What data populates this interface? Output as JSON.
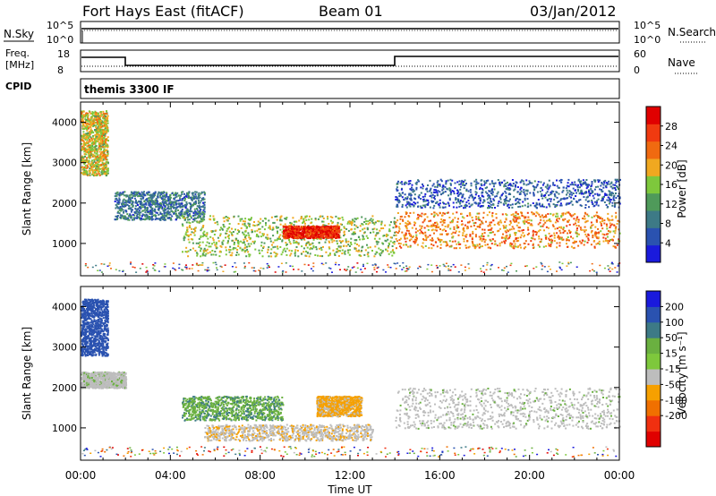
{
  "header": {
    "radar_title": "Fort Hays East (fitACF)",
    "beam": "Beam 01",
    "date": "03/Jan/2012"
  },
  "aux_panels": {
    "nsky_label": "N.Sky",
    "nsearch_label": "N.Search",
    "nsky_scale_top": "10^5",
    "nsky_scale_bottom": "10^0",
    "freq_label_line1": "Freq.",
    "freq_label_line2": "[MHz]",
    "freq_scale_top": "18",
    "freq_scale_bottom": "8",
    "nave_label": "Nave",
    "nave_scale_top": "60",
    "nave_scale_bottom": "0",
    "cpid_label": "CPID",
    "cpid_value": "themis 3300 IF"
  },
  "colors": {
    "power": [
      "#1a1adc",
      "#2a52b0",
      "#3d7a86",
      "#4f9a5a",
      "#7ec83c",
      "#f0a820",
      "#f06a10",
      "#f03a10",
      "#e00000"
    ],
    "velocity": [
      "#1a1adc",
      "#2a52b0",
      "#3d7a86",
      "#6ab040",
      "#7ec83c",
      "#bdbdbd",
      "#f6a000",
      "#f07000",
      "#f03010",
      "#e00000"
    ],
    "ground": "#bdbdbd"
  },
  "chart_data": [
    {
      "type": "heatmap",
      "title": "Fort Hays East (fitACF)",
      "panel": "power",
      "xlabel": "Time UT",
      "ylabel": "Slant Range [km]",
      "xlim": [
        0,
        24
      ],
      "ylim": [
        200,
        4500
      ],
      "x_ticks": [
        "00:00",
        "04:00",
        "08:00",
        "12:00",
        "16:00",
        "20:00",
        "00:00"
      ],
      "y_ticks": [
        1000,
        2000,
        3000,
        4000
      ],
      "colorbar": {
        "label": "Power [dB]",
        "ticks": [
          4,
          8,
          12,
          16,
          20,
          24,
          28
        ],
        "range": [
          0,
          32
        ]
      },
      "scatter_bands": [
        {
          "t_start": 0.0,
          "t_end": 1.2,
          "range_low": 2700,
          "range_high": 4300,
          "level": 18
        },
        {
          "t_start": 1.5,
          "t_end": 5.5,
          "range_low": 1600,
          "range_high": 2300,
          "level": 8
        },
        {
          "t_start": 4.5,
          "t_end": 14.0,
          "range_low": 700,
          "range_high": 1700,
          "level": 16
        },
        {
          "t_start": 9.0,
          "t_end": 11.5,
          "range_low": 1150,
          "range_high": 1450,
          "level": 28
        },
        {
          "t_start": 14.0,
          "t_end": 24.0,
          "range_low": 900,
          "range_high": 1800,
          "level": 22
        },
        {
          "t_start": 14.0,
          "t_end": 24.0,
          "range_low": 1900,
          "range_high": 2600,
          "level": 6
        }
      ]
    },
    {
      "type": "heatmap",
      "panel": "velocity",
      "xlabel": "Time UT",
      "ylabel": "Slant Range [km]",
      "xlim": [
        0,
        24
      ],
      "ylim": [
        200,
        4500
      ],
      "x_ticks": [
        "00:00",
        "04:00",
        "08:00",
        "12:00",
        "16:00",
        "20:00",
        "00:00"
      ],
      "y_ticks": [
        1000,
        2000,
        3000,
        4000
      ],
      "colorbar": {
        "label": "Velocity [m s⁻¹]",
        "ticks": [
          "200",
          "100",
          "50",
          "15",
          "-15",
          "-50",
          "-100",
          "-200"
        ]
      },
      "scatter_bands": [
        {
          "t_start": 0.0,
          "t_end": 1.2,
          "range_low": 2800,
          "range_high": 4200,
          "velocity": 150
        },
        {
          "t_start": 0.0,
          "t_end": 2.0,
          "range_low": 2000,
          "range_high": 2400,
          "velocity": 0
        },
        {
          "t_start": 4.5,
          "t_end": 9.0,
          "range_low": 1200,
          "range_high": 1800,
          "velocity": 40
        },
        {
          "t_start": 5.5,
          "t_end": 13.0,
          "range_low": 700,
          "range_high": 1100,
          "velocity": -40
        },
        {
          "t_start": 10.5,
          "t_end": 12.5,
          "range_low": 1300,
          "range_high": 1800,
          "velocity": -60
        },
        {
          "t_start": 14.0,
          "t_end": 24.0,
          "range_low": 1000,
          "range_high": 2000,
          "velocity": 0
        }
      ]
    }
  ]
}
